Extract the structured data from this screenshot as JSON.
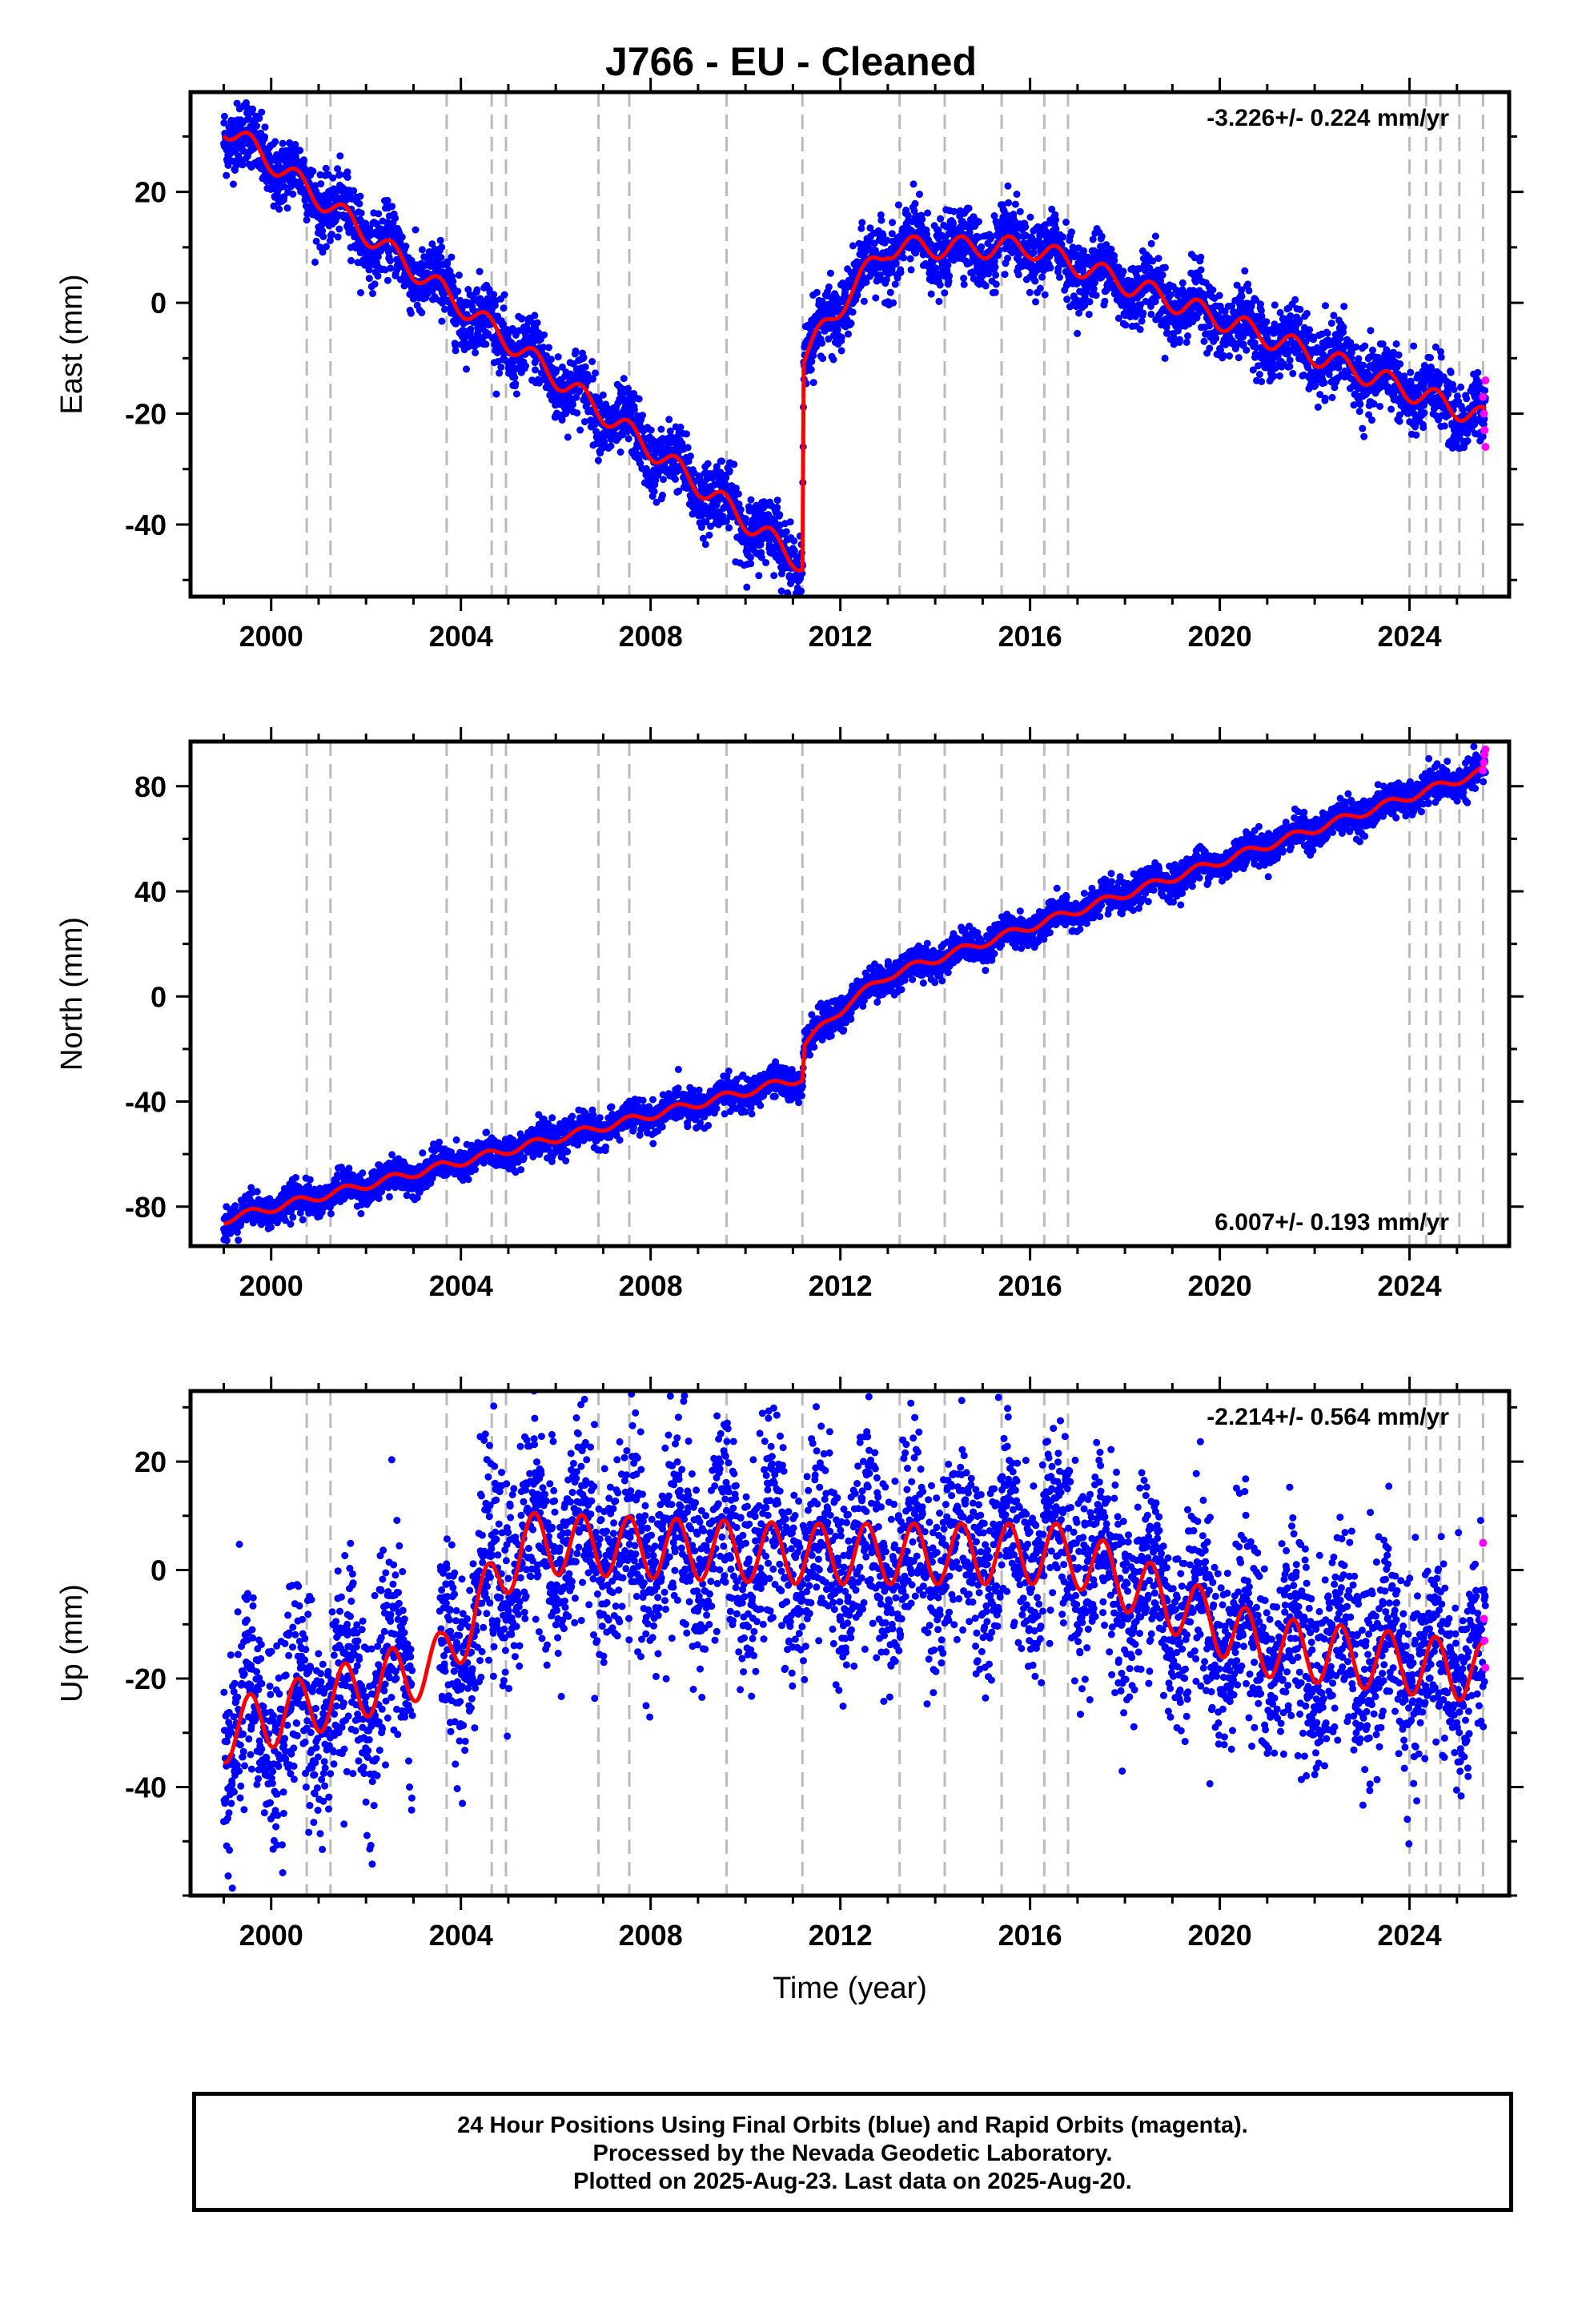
{
  "title": "J766  - EU - Cleaned",
  "chart_data": [
    {
      "type": "scatter",
      "ylabel": "East (mm)",
      "xlabel": "",
      "xlim": [
        1998.3,
        2026.1
      ],
      "ylim": [
        -53,
        38
      ],
      "xticks": [
        2000,
        2004,
        2008,
        2012,
        2016,
        2020,
        2024
      ],
      "yticks": [
        -40,
        -20,
        0,
        20
      ],
      "rate_text": "-3.226+/- 0.224 mm/yr",
      "rate_position": "top-right",
      "model_trend": [
        [
          1999.0,
          32
        ],
        [
          2011.2,
          -47
        ],
        [
          2011.23,
          -10
        ],
        [
          2012.2,
          2
        ],
        [
          2013.0,
          10
        ],
        [
          2016.0,
          10
        ],
        [
          2025.6,
          -21
        ]
      ],
      "seasonal_amplitude": 2.5,
      "scatter_spread": 3,
      "rapid_points": [
        [
          2025.55,
          -17
        ],
        [
          2025.57,
          -20
        ],
        [
          2025.58,
          -23
        ],
        [
          2025.6,
          -26
        ],
        [
          2025.6,
          -14
        ]
      ]
    },
    {
      "type": "scatter",
      "ylabel": "North (mm)",
      "xlabel": "",
      "xlim": [
        1998.3,
        2026.1
      ],
      "ylim": [
        -95,
        97
      ],
      "xticks": [
        2000,
        2004,
        2008,
        2012,
        2016,
        2020,
        2024
      ],
      "yticks": [
        -80,
        -40,
        0,
        40,
        80
      ],
      "rate_text": "6.007+/- 0.193 mm/yr",
      "rate_position": "bottom-right",
      "model_trend": [
        [
          1999.0,
          -85
        ],
        [
          2011.2,
          -31
        ],
        [
          2011.25,
          -18
        ],
        [
          2012.2,
          -2
        ],
        [
          2013.0,
          8
        ],
        [
          2025.6,
          86
        ]
      ],
      "seasonal_amplitude": 2,
      "scatter_spread": 3,
      "rapid_points": [
        [
          2025.55,
          86
        ],
        [
          2025.57,
          89
        ],
        [
          2025.58,
          92
        ],
        [
          2025.6,
          94
        ]
      ]
    },
    {
      "type": "scatter",
      "ylabel": "Up (mm)",
      "xlabel": "Time (year)",
      "xlim": [
        1998.3,
        2026.1
      ],
      "ylim": [
        -60,
        33
      ],
      "xticks": [
        2000,
        2004,
        2008,
        2012,
        2016,
        2020,
        2024
      ],
      "yticks": [
        -40,
        -20,
        0,
        20
      ],
      "rate_text": "-2.214+/- 0.564 mm/yr",
      "rate_position": "top-right",
      "model_trend": [
        [
          1999.0,
          -30
        ],
        [
          2003.6,
          -17
        ],
        [
          2005.3,
          5
        ],
        [
          2011.2,
          3
        ],
        [
          2016.8,
          3
        ],
        [
          2020.9,
          -14
        ],
        [
          2025.6,
          -19
        ]
      ],
      "seasonal_amplitude": 7,
      "scatter_spread": 9,
      "rapid_points": [
        [
          2025.55,
          5
        ],
        [
          2025.57,
          -9
        ],
        [
          2025.58,
          -13
        ],
        [
          2025.6,
          -18
        ]
      ]
    }
  ],
  "event_lines": [
    2000.75,
    2001.25,
    2003.7,
    2004.65,
    2004.95,
    2006.9,
    2007.55,
    2009.6,
    2011.2,
    2013.25,
    2014.2,
    2015.4,
    2016.3,
    2016.8,
    2024.0,
    2024.35,
    2024.65,
    2025.05,
    2025.55
  ],
  "colors": {
    "final_orbits": "#0000ff",
    "rapid_orbits": "#ff00ff",
    "model": "#ff0000",
    "event_lines": "#bbbbbb"
  },
  "footer": {
    "line1": "24 Hour Positions Using Final Orbits (blue) and Rapid Orbits (magenta).",
    "line2": "Processed by the Nevada Geodetic Laboratory.",
    "line3": "Plotted on 2025-Aug-23. Last data on 2025-Aug-20."
  }
}
